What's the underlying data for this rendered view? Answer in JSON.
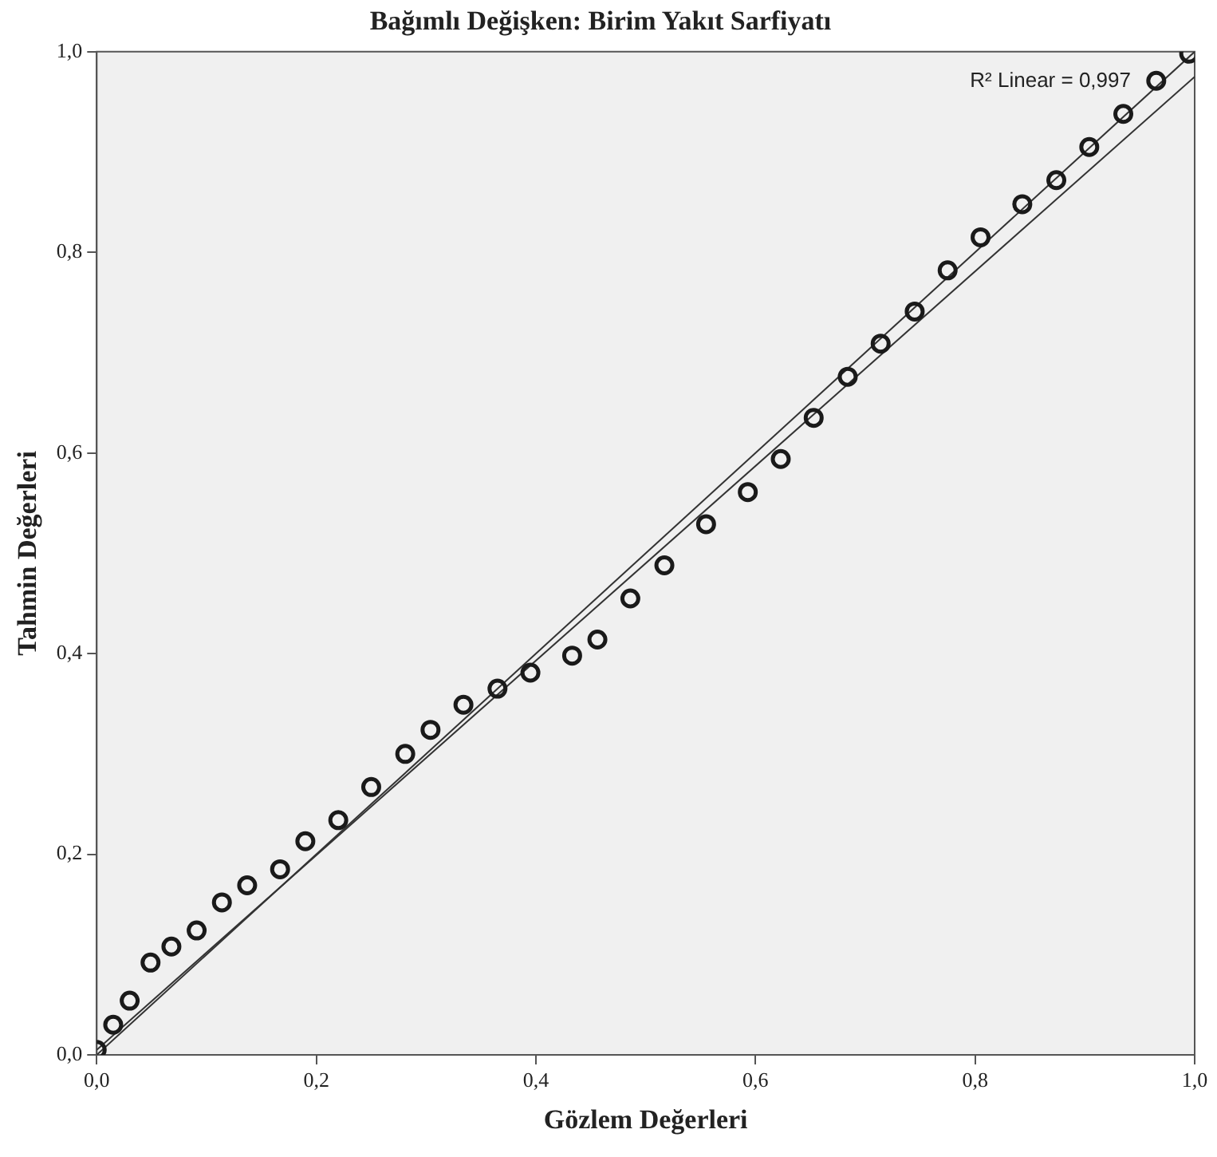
{
  "chart_data": {
    "type": "scatter",
    "title": "Bağımlı Değişken: Birim Yakıt Sarfiyatı",
    "xlabel": "Gözlem Değerleri",
    "ylabel": "Tahmin Değerleri",
    "annotations": [
      "R² Linear = 0,997"
    ],
    "xlim": [
      0,
      1
    ],
    "ylim": [
      0,
      1
    ],
    "xticks": [
      {
        "value": 0,
        "label": "0,0"
      },
      {
        "value": 0.2,
        "label": "0,2"
      },
      {
        "value": 0.4,
        "label": "0,4"
      },
      {
        "value": 0.6,
        "label": "0,6"
      },
      {
        "value": 0.8,
        "label": "0,8"
      },
      {
        "value": 1,
        "label": "1,0"
      }
    ],
    "yticks": [
      {
        "value": 0,
        "label": "0,0"
      },
      {
        "value": 0.2,
        "label": "0,2"
      },
      {
        "value": 0.4,
        "label": "0,4"
      },
      {
        "value": 0.6,
        "label": "0,6"
      },
      {
        "value": 0.8,
        "label": "0,8"
      },
      {
        "value": 1,
        "label": "1,0"
      }
    ],
    "grid": false,
    "marker": "circle",
    "series": [
      {
        "type": "scatter",
        "color": "#1a1a1a",
        "x": [
          0,
          0.015,
          0.03,
          0.049,
          0.068,
          0.091,
          0.114,
          0.137,
          0.167,
          0.19,
          0.22,
          0.25,
          0.281,
          0.304,
          0.334,
          0.365,
          0.395,
          0.433,
          0.456,
          0.486,
          0.517,
          0.555,
          0.593,
          0.623,
          0.653,
          0.684,
          0.714,
          0.745,
          0.775,
          0.805,
          0.843,
          0.874,
          0.904,
          0.935,
          0.965,
          0.995
        ],
        "values": [
          0.005,
          0.03,
          0.054,
          0.092,
          0.108,
          0.124,
          0.152,
          0.169,
          0.185,
          0.213,
          0.234,
          0.267,
          0.3,
          0.324,
          0.349,
          0.365,
          0.381,
          0.398,
          0.414,
          0.455,
          0.488,
          0.529,
          0.561,
          0.594,
          0.635,
          0.676,
          0.709,
          0.741,
          0.782,
          0.815,
          0.848,
          0.872,
          0.905,
          0.938,
          0.971,
          0.998
        ]
      },
      {
        "type": "line",
        "color": "#333333",
        "x": [
          0,
          1
        ],
        "values": [
          0,
          1
        ],
        "marker": "none"
      },
      {
        "type": "line",
        "color": "#333333",
        "x": [
          0,
          1
        ],
        "values": [
          0.005,
          0.975
        ],
        "marker": "none"
      }
    ]
  }
}
